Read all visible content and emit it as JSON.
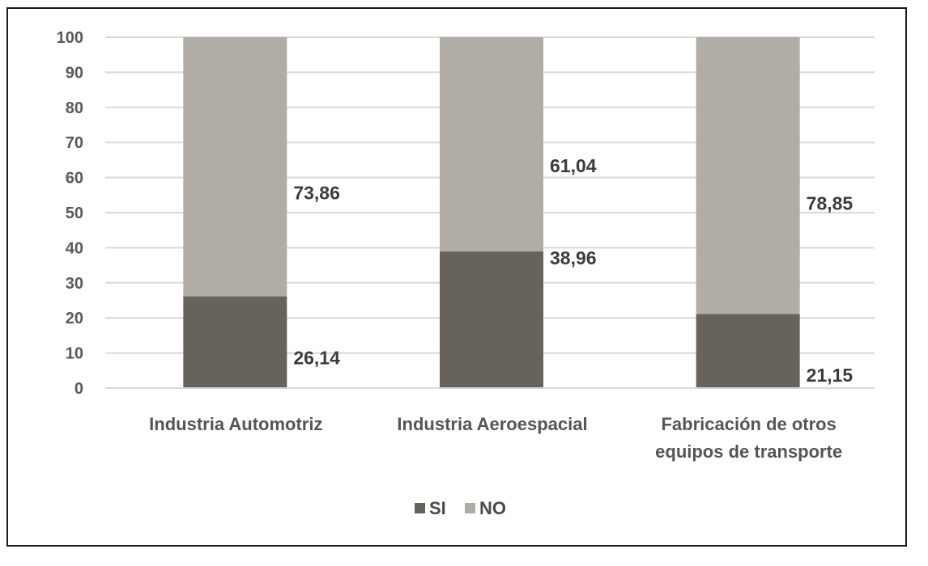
{
  "chart_data": {
    "type": "bar",
    "stacked": true,
    "categories": [
      [
        "Industria Automotriz"
      ],
      [
        "Industria Aeroespacial"
      ],
      [
        "Fabricación de otros",
        "equipos de transporte"
      ]
    ],
    "series": [
      {
        "name": "SI",
        "values": [
          26.14,
          38.96,
          21.15
        ],
        "labels": [
          "26,14",
          "38,96",
          "21,15"
        ],
        "color": "#67625b"
      },
      {
        "name": "NO",
        "values": [
          73.86,
          61.04,
          78.85
        ],
        "labels": [
          "73,86",
          "61,04",
          "78,85"
        ],
        "color": "#b1aca6"
      }
    ],
    "ylim": [
      0,
      100
    ],
    "yticks": [
      "0",
      "10",
      "20",
      "30",
      "40",
      "50",
      "60",
      "70",
      "80",
      "90",
      "100"
    ],
    "grid": true,
    "legend_position": "bottom",
    "gridline_color": "#d9d9d9"
  }
}
